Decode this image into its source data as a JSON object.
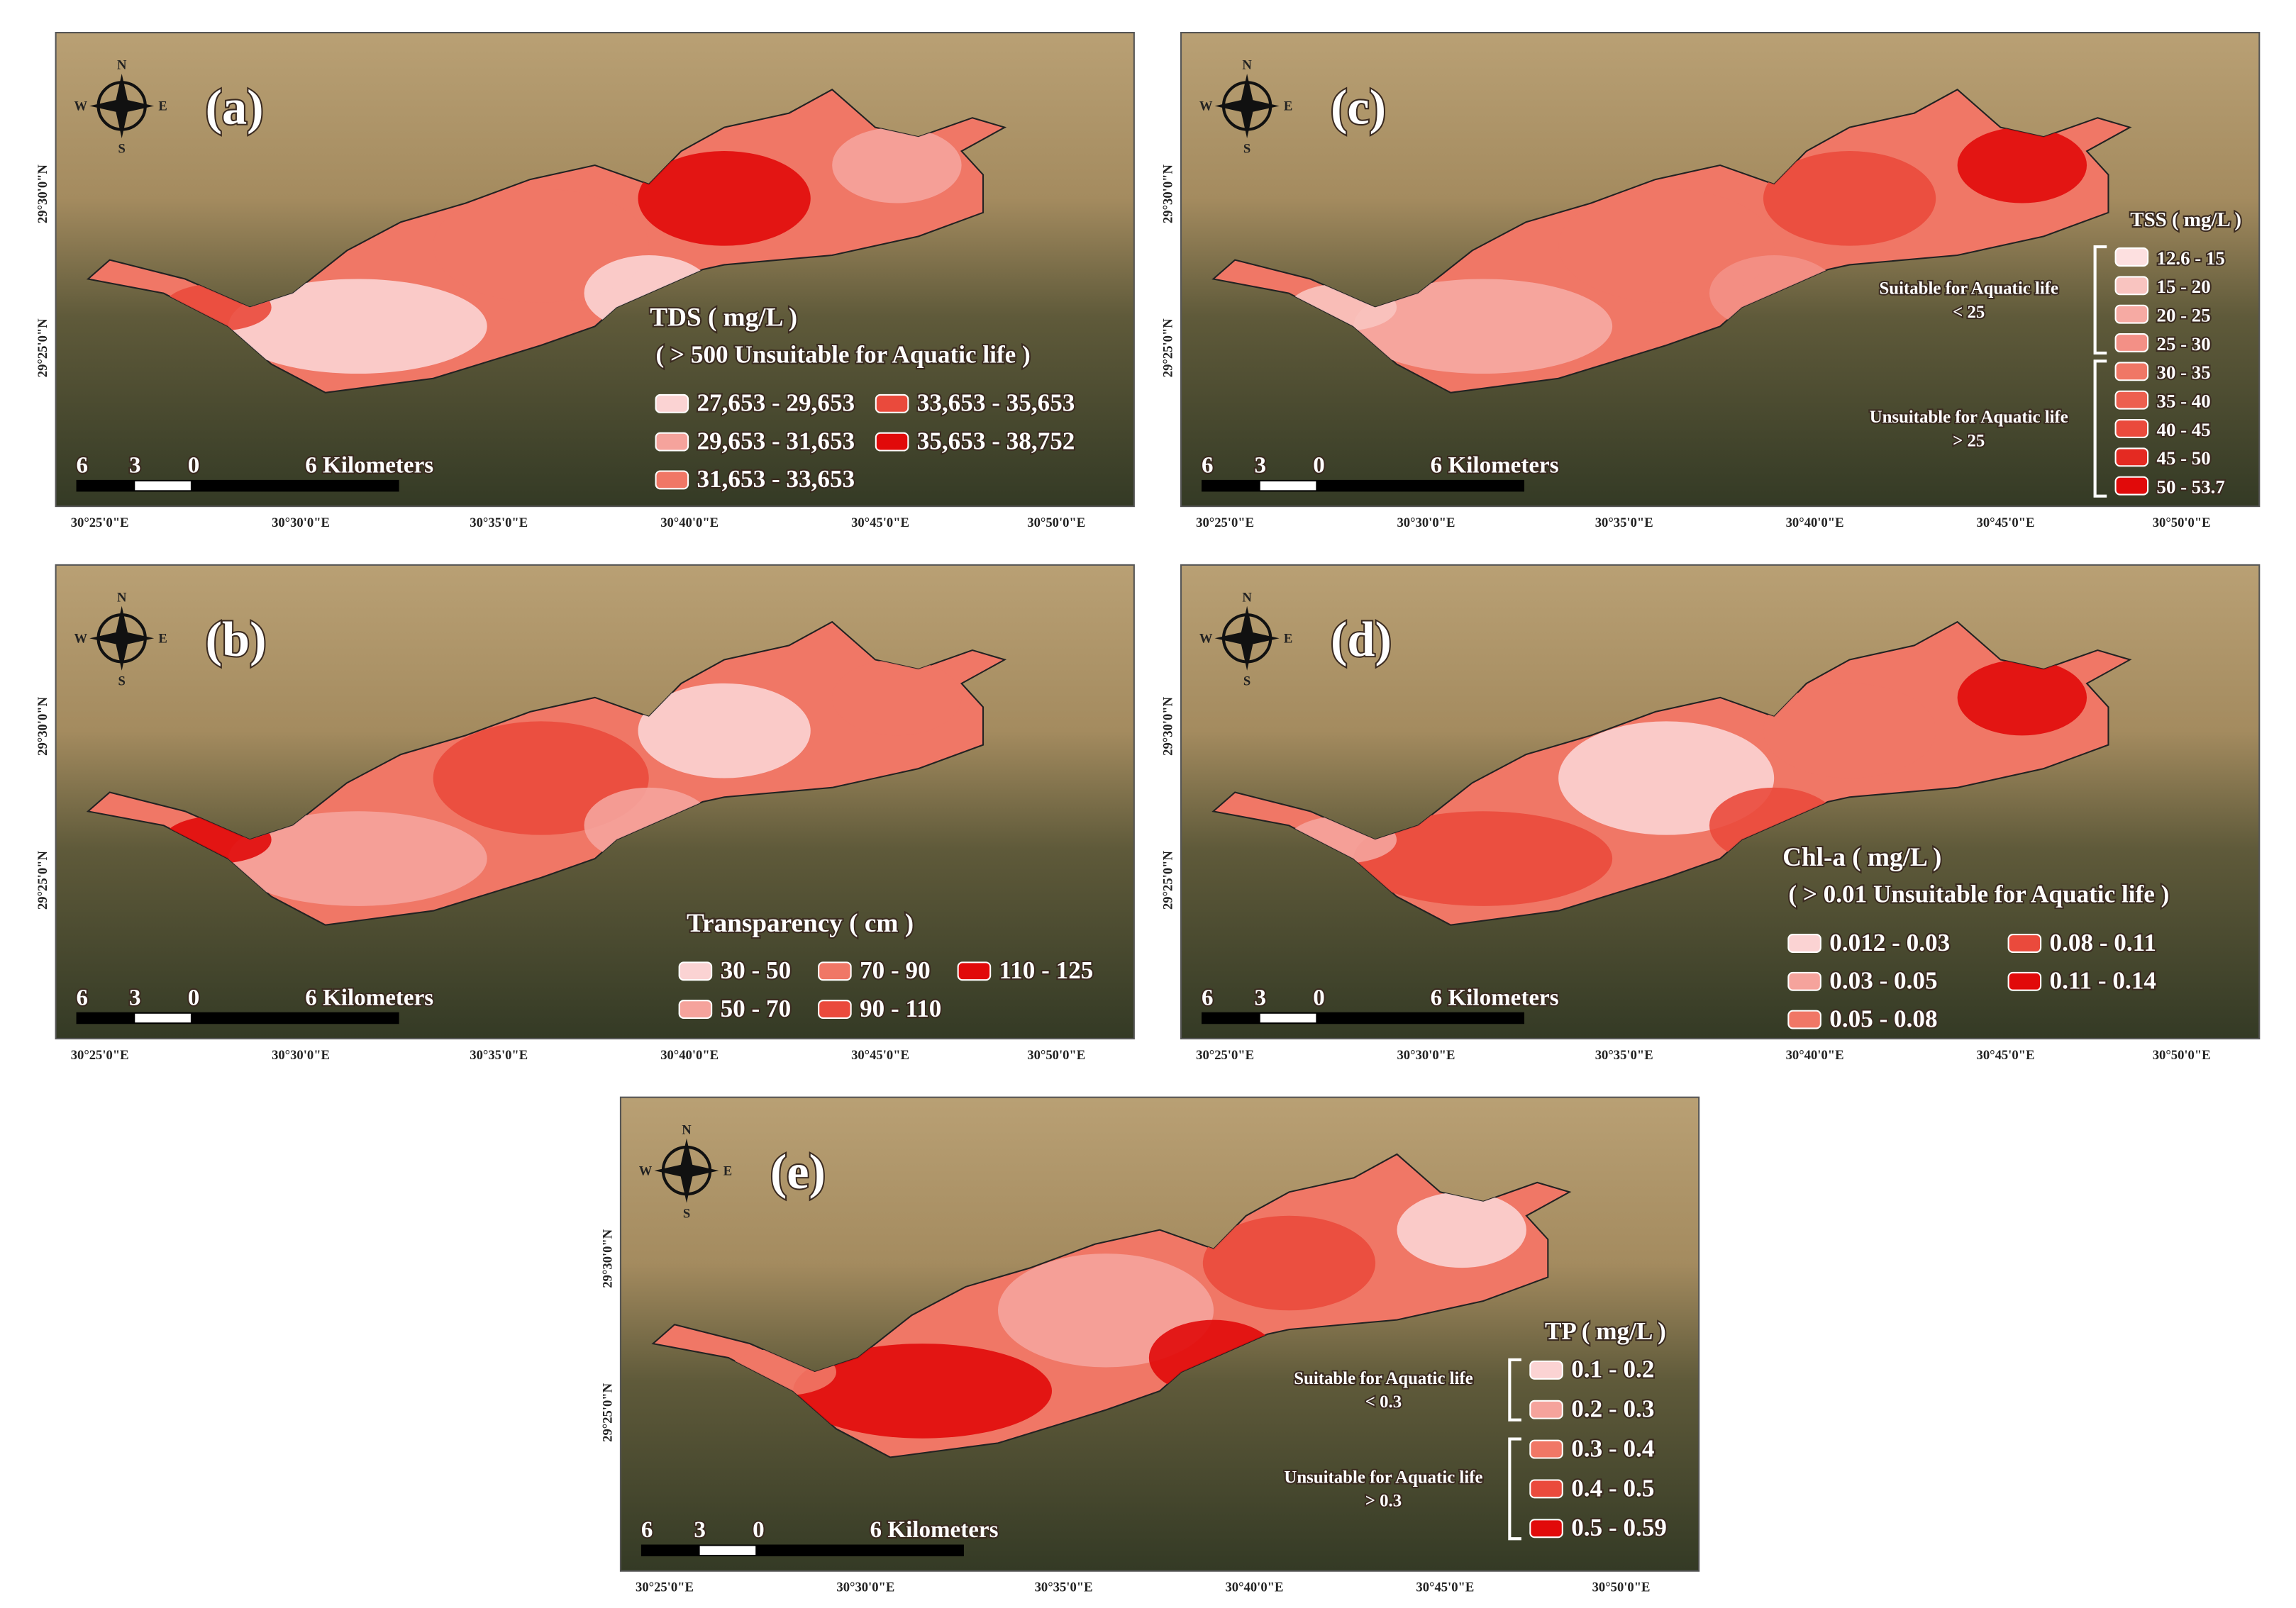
{
  "compass": {
    "n": "N",
    "s": "S",
    "w": "W",
    "e": "E"
  },
  "scale_bar": {
    "left": "6",
    "mid": "3",
    "zero": "0",
    "right": "6 Kilometers"
  },
  "x_labels": [
    "30°25'0\"E",
    "30°30'0\"E",
    "30°35'0\"E",
    "30°40'0\"E",
    "30°45'0\"E",
    "30°50'0\"E"
  ],
  "y_labels": [
    "29°30'0\"N",
    "29°25'0\"N"
  ],
  "panels": [
    {
      "label": "(a)",
      "legend_title": "TDS ( mg/L )",
      "legend_subtitle": "( > 500 Unsuitable for Aquatic life )",
      "items": [
        {
          "label": "27,653 - 29,653",
          "color": "#fbd3d3"
        },
        {
          "label": "29,653 - 31,653",
          "color": "#f5a39c"
        },
        {
          "label": "31,653 - 33,653",
          "color": "#f07766"
        },
        {
          "label": "33,653 - 35,653",
          "color": "#ea4a3c"
        },
        {
          "label": "35,653 - 38,752",
          "color": "#e10a0a"
        }
      ]
    },
    {
      "label": "(b)",
      "legend_title": "Transparency ( cm )",
      "items": [
        {
          "label": "30 - 50",
          "color": "#fbd3d3"
        },
        {
          "label": "50 - 70",
          "color": "#f5a39c"
        },
        {
          "label": "70 - 90",
          "color": "#f07766"
        },
        {
          "label": "90 - 110",
          "color": "#ea4a3c"
        },
        {
          "label": "110 - 125",
          "color": "#e10a0a"
        }
      ]
    },
    {
      "label": "(c)",
      "legend_title": "TSS ( mg/L )",
      "notes": [
        {
          "text": "Suitable for Aquatic life",
          "sub": "< 25"
        },
        {
          "text": "Unsuitable for Aquatic life",
          "sub": "> 25"
        }
      ],
      "items": [
        {
          "label": "12.6 - 15",
          "color": "#fde0e0"
        },
        {
          "label": "15 - 20",
          "color": "#f9c4c0"
        },
        {
          "label": "20 - 25",
          "color": "#f6aaa3"
        },
        {
          "label": "25 - 30",
          "color": "#f39086"
        },
        {
          "label": "30 - 35",
          "color": "#f07766"
        },
        {
          "label": "35 - 40",
          "color": "#ed5f4f"
        },
        {
          "label": "40 - 45",
          "color": "#ea4a3c"
        },
        {
          "label": "45 - 50",
          "color": "#e42a22"
        },
        {
          "label": "50 - 53.7",
          "color": "#e10a0a"
        }
      ]
    },
    {
      "label": "(d)",
      "legend_title": "Chl-a ( mg/L )",
      "legend_subtitle": "( > 0.01 Unsuitable for Aquatic life )",
      "items": [
        {
          "label": "0.012 - 0.03",
          "color": "#fbd3d3"
        },
        {
          "label": "0.03 - 0.05",
          "color": "#f5a39c"
        },
        {
          "label": "0.05 - 0.08",
          "color": "#f07766"
        },
        {
          "label": "0.08 - 0.11",
          "color": "#ea4a3c"
        },
        {
          "label": "0.11 - 0.14",
          "color": "#e10a0a"
        }
      ]
    },
    {
      "label": "(e)",
      "legend_title": "TP ( mg/L )",
      "notes": [
        {
          "text": "Suitable for Aquatic life",
          "sub": "< 0.3"
        },
        {
          "text": "Unsuitable for Aquatic life",
          "sub": "> 0.3"
        }
      ],
      "items": [
        {
          "label": "0.1 - 0.2",
          "color": "#fbd3d3"
        },
        {
          "label": "0.2 - 0.3",
          "color": "#f5a39c"
        },
        {
          "label": "0.3 - 0.4",
          "color": "#f07766"
        },
        {
          "label": "0.4 - 0.5",
          "color": "#ea4a3c"
        },
        {
          "label": "0.5 - 0.59",
          "color": "#e10a0a"
        }
      ]
    }
  ]
}
